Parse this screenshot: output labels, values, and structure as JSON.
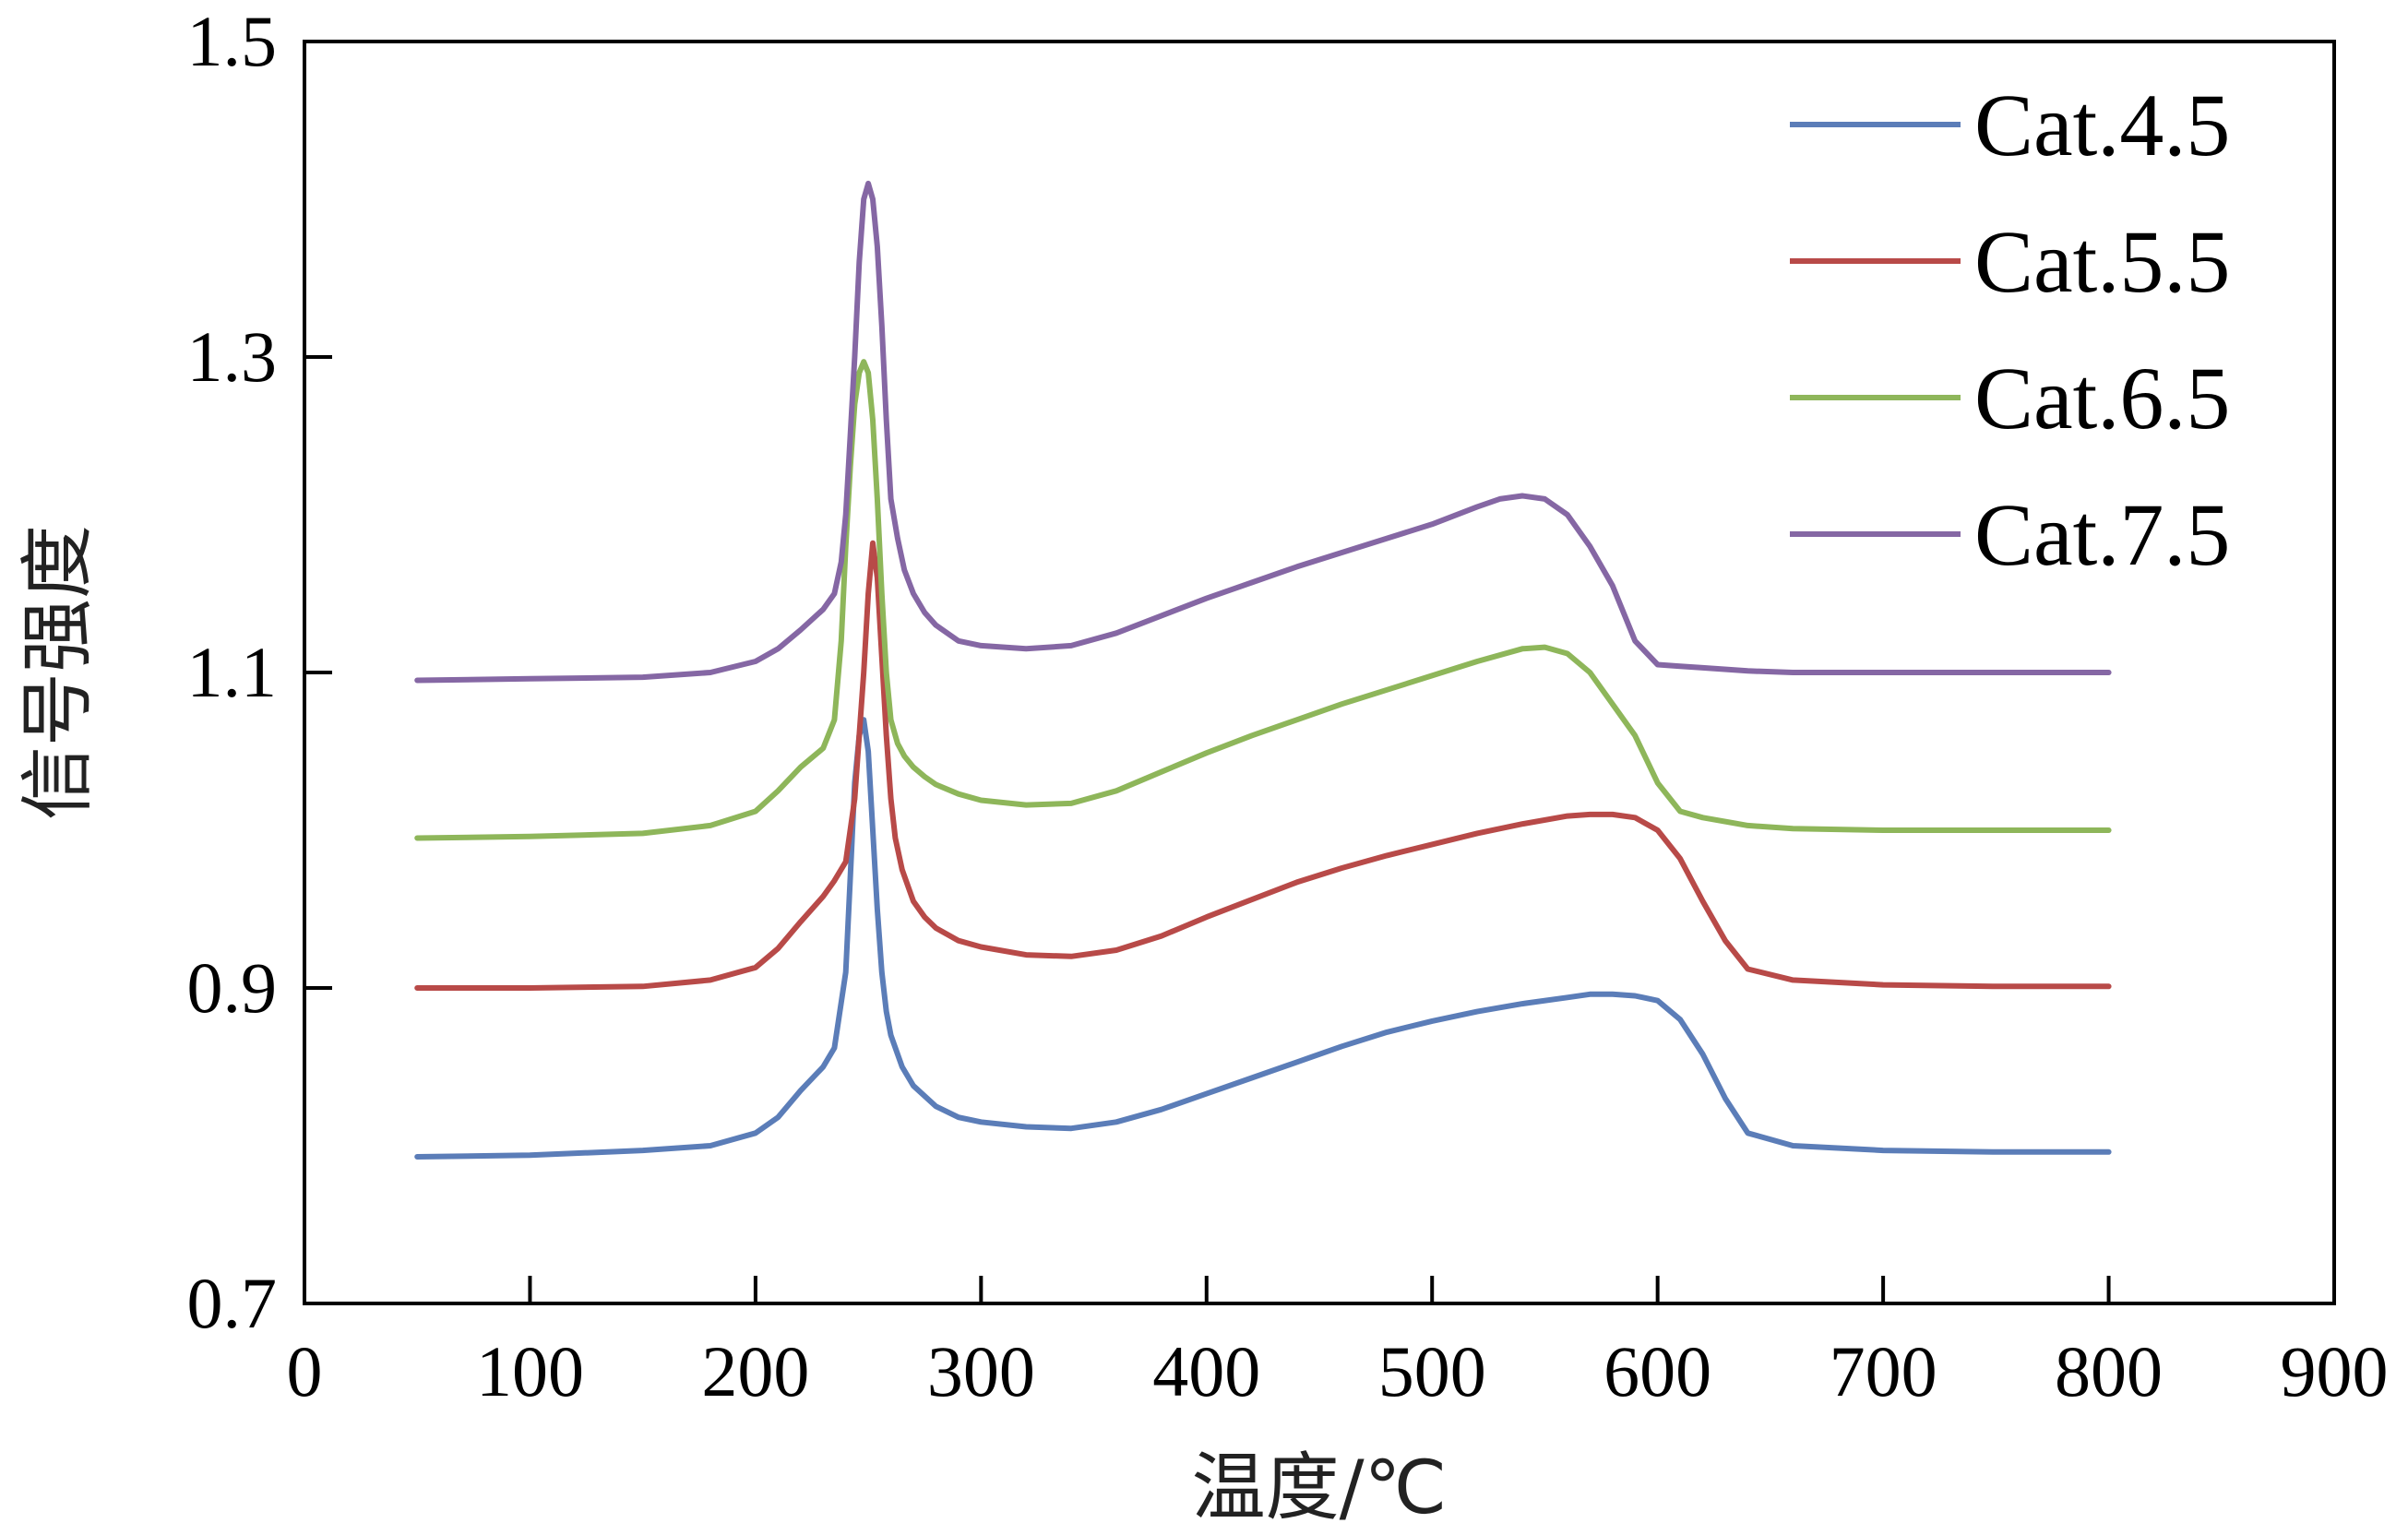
{
  "chart_data": {
    "type": "line",
    "title": "",
    "xlabel": "温度/℃",
    "ylabel": "信号强度",
    "xlim": [
      0,
      900
    ],
    "ylim": [
      0.7,
      1.5
    ],
    "xticks": [
      "0",
      "100",
      "200",
      "300",
      "400",
      "500",
      "600",
      "700",
      "800",
      "900"
    ],
    "yticks": [
      "0.7",
      "0.9",
      "1.1",
      "1.3",
      "1.5"
    ],
    "grid": false,
    "legend_position": "top-right",
    "series": [
      {
        "name": "Cat.4.5",
        "color": "#5b7db8",
        "x": [
          50,
          100,
          150,
          180,
          200,
          210,
          220,
          230,
          235,
          240,
          242,
          244,
          246,
          248,
          250,
          252,
          254,
          256,
          258,
          260,
          265,
          270,
          280,
          290,
          300,
          320,
          340,
          360,
          380,
          400,
          420,
          440,
          460,
          480,
          500,
          520,
          540,
          560,
          570,
          580,
          590,
          600,
          610,
          620,
          630,
          640,
          660,
          700,
          750,
          800
        ],
        "y": [
          0.793,
          0.794,
          0.797,
          0.8,
          0.808,
          0.818,
          0.835,
          0.85,
          0.862,
          0.91,
          0.97,
          1.03,
          1.06,
          1.07,
          1.05,
          1.0,
          0.95,
          0.91,
          0.885,
          0.87,
          0.85,
          0.838,
          0.825,
          0.818,
          0.815,
          0.812,
          0.811,
          0.815,
          0.823,
          0.833,
          0.843,
          0.853,
          0.863,
          0.872,
          0.879,
          0.885,
          0.89,
          0.894,
          0.896,
          0.896,
          0.895,
          0.892,
          0.88,
          0.858,
          0.83,
          0.808,
          0.8,
          0.797,
          0.796,
          0.796
        ]
      },
      {
        "name": "Cat.5.5",
        "color": "#b84a48",
        "x": [
          50,
          100,
          150,
          180,
          200,
          210,
          220,
          230,
          235,
          240,
          244,
          246,
          248,
          250,
          252,
          254,
          256,
          258,
          260,
          262,
          265,
          270,
          275,
          280,
          290,
          300,
          320,
          340,
          360,
          380,
          400,
          420,
          440,
          460,
          480,
          500,
          520,
          540,
          560,
          570,
          580,
          590,
          600,
          610,
          620,
          630,
          640,
          660,
          700,
          750,
          800
        ],
        "y": [
          0.9,
          0.9,
          0.901,
          0.905,
          0.913,
          0.925,
          0.942,
          0.958,
          0.968,
          0.98,
          1.02,
          1.06,
          1.1,
          1.15,
          1.182,
          1.16,
          1.11,
          1.06,
          1.02,
          0.995,
          0.975,
          0.955,
          0.945,
          0.938,
          0.93,
          0.926,
          0.921,
          0.92,
          0.924,
          0.933,
          0.945,
          0.956,
          0.967,
          0.976,
          0.984,
          0.991,
          0.998,
          1.004,
          1.009,
          1.01,
          1.01,
          1.008,
          1.0,
          0.982,
          0.955,
          0.93,
          0.912,
          0.905,
          0.902,
          0.901,
          0.901
        ]
      },
      {
        "name": "Cat.6.5",
        "color": "#8eb65a",
        "x": [
          50,
          100,
          150,
          180,
          200,
          210,
          220,
          230,
          235,
          238,
          240,
          242,
          244,
          246,
          248,
          250,
          252,
          254,
          256,
          258,
          260,
          263,
          266,
          270,
          275,
          280,
          290,
          300,
          320,
          340,
          360,
          380,
          400,
          420,
          440,
          460,
          480,
          500,
          520,
          540,
          550,
          560,
          570,
          580,
          590,
          600,
          610,
          620,
          640,
          660,
          700,
          750,
          800
        ],
        "y": [
          0.995,
          0.996,
          0.998,
          1.003,
          1.012,
          1.025,
          1.04,
          1.052,
          1.07,
          1.12,
          1.18,
          1.23,
          1.27,
          1.29,
          1.297,
          1.29,
          1.26,
          1.21,
          1.15,
          1.1,
          1.07,
          1.055,
          1.047,
          1.04,
          1.034,
          1.029,
          1.023,
          1.019,
          1.016,
          1.017,
          1.025,
          1.037,
          1.049,
          1.06,
          1.07,
          1.08,
          1.089,
          1.098,
          1.107,
          1.115,
          1.116,
          1.112,
          1.1,
          1.08,
          1.06,
          1.03,
          1.012,
          1.008,
          1.003,
          1.001,
          1.0,
          1.0,
          1.0
        ]
      },
      {
        "name": "Cat.7.5",
        "color": "#8567a4",
        "x": [
          50,
          100,
          150,
          180,
          200,
          210,
          220,
          230,
          235,
          238,
          240,
          242,
          244,
          246,
          248,
          250,
          252,
          254,
          256,
          258,
          260,
          263,
          266,
          270,
          275,
          280,
          290,
          300,
          320,
          340,
          360,
          380,
          400,
          420,
          440,
          460,
          480,
          500,
          520,
          530,
          540,
          550,
          560,
          570,
          580,
          590,
          600,
          610,
          620,
          640,
          660,
          700,
          750,
          800
        ],
        "y": [
          1.095,
          1.096,
          1.097,
          1.1,
          1.107,
          1.115,
          1.127,
          1.14,
          1.15,
          1.17,
          1.2,
          1.25,
          1.3,
          1.36,
          1.4,
          1.41,
          1.4,
          1.37,
          1.32,
          1.26,
          1.21,
          1.185,
          1.165,
          1.15,
          1.138,
          1.13,
          1.12,
          1.117,
          1.115,
          1.117,
          1.125,
          1.136,
          1.147,
          1.157,
          1.167,
          1.176,
          1.185,
          1.194,
          1.205,
          1.21,
          1.212,
          1.21,
          1.2,
          1.18,
          1.155,
          1.12,
          1.105,
          1.104,
          1.103,
          1.101,
          1.1,
          1.1,
          1.1,
          1.1
        ]
      }
    ]
  }
}
